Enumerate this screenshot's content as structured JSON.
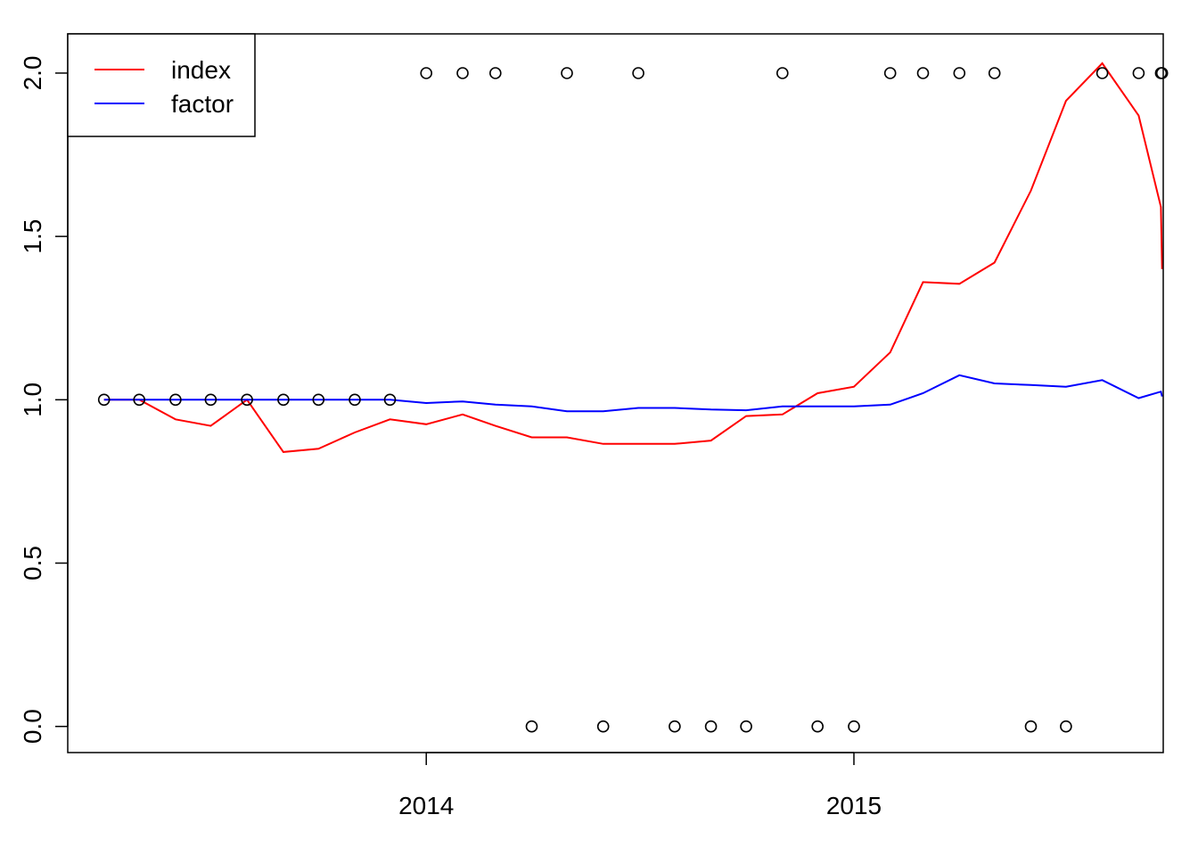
{
  "chart_data": {
    "type": "line",
    "x_axis": {
      "kind": "date",
      "range": [
        "2013-03-01",
        "2015-09-22"
      ],
      "ticks": [
        {
          "value": "2014-01-01",
          "label": "2014"
        },
        {
          "value": "2015-01-01",
          "label": "2015"
        }
      ]
    },
    "y_axis": {
      "range": [
        -0.08,
        2.12
      ],
      "ticks": [
        {
          "value": 0.0,
          "label": "0.0"
        },
        {
          "value": 0.5,
          "label": "0.5"
        },
        {
          "value": 1.0,
          "label": "1.0"
        },
        {
          "value": 1.5,
          "label": "1.5"
        },
        {
          "value": 2.0,
          "label": "2.0"
        }
      ]
    },
    "grid": false,
    "legend": {
      "position": "top-left",
      "entries": [
        {
          "label": "index",
          "color": "#ff0000"
        },
        {
          "label": "factor",
          "color": "#0000ff"
        }
      ]
    },
    "series": [
      {
        "name": "index",
        "type": "line",
        "color": "#ff0000",
        "points": [
          [
            "2013-04-01",
            1.0
          ],
          [
            "2013-05-01",
            1.0
          ],
          [
            "2013-06-01",
            0.94
          ],
          [
            "2013-07-01",
            0.92
          ],
          [
            "2013-08-01",
            1.0
          ],
          [
            "2013-09-01",
            0.84
          ],
          [
            "2013-10-01",
            0.85
          ],
          [
            "2013-11-01",
            0.9
          ],
          [
            "2013-12-01",
            0.94
          ],
          [
            "2014-01-01",
            0.925
          ],
          [
            "2014-02-01",
            0.955
          ],
          [
            "2014-03-01",
            0.92
          ],
          [
            "2014-04-01",
            0.885
          ],
          [
            "2014-05-01",
            0.885
          ],
          [
            "2014-06-01",
            0.865
          ],
          [
            "2014-07-01",
            0.865
          ],
          [
            "2014-08-01",
            0.865
          ],
          [
            "2014-09-01",
            0.875
          ],
          [
            "2014-10-01",
            0.95
          ],
          [
            "2014-11-01",
            0.955
          ],
          [
            "2014-12-01",
            1.02
          ],
          [
            "2015-01-01",
            1.04
          ],
          [
            "2015-02-01",
            1.145
          ],
          [
            "2015-03-01",
            1.36
          ],
          [
            "2015-04-01",
            1.355
          ],
          [
            "2015-05-01",
            1.42
          ],
          [
            "2015-06-01",
            1.64
          ],
          [
            "2015-07-01",
            1.915
          ],
          [
            "2015-08-01",
            2.03
          ],
          [
            "2015-09-01",
            1.87
          ],
          [
            "2015-09-20",
            1.59
          ],
          [
            "2015-09-21",
            1.4
          ]
        ]
      },
      {
        "name": "factor",
        "type": "line",
        "color": "#0000ff",
        "points": [
          [
            "2013-04-01",
            1.0
          ],
          [
            "2013-05-01",
            1.0
          ],
          [
            "2013-06-01",
            1.0
          ],
          [
            "2013-07-01",
            1.0
          ],
          [
            "2013-08-01",
            1.0
          ],
          [
            "2013-09-01",
            1.0
          ],
          [
            "2013-10-01",
            1.0
          ],
          [
            "2013-11-01",
            1.0
          ],
          [
            "2013-12-01",
            1.0
          ],
          [
            "2014-01-01",
            0.99
          ],
          [
            "2014-02-01",
            0.995
          ],
          [
            "2014-03-01",
            0.985
          ],
          [
            "2014-04-01",
            0.98
          ],
          [
            "2014-05-01",
            0.965
          ],
          [
            "2014-06-01",
            0.965
          ],
          [
            "2014-07-01",
            0.975
          ],
          [
            "2014-08-01",
            0.975
          ],
          [
            "2014-09-01",
            0.97
          ],
          [
            "2014-10-01",
            0.968
          ],
          [
            "2014-11-01",
            0.98
          ],
          [
            "2014-12-01",
            0.98
          ],
          [
            "2015-01-01",
            0.98
          ],
          [
            "2015-02-01",
            0.985
          ],
          [
            "2015-03-01",
            1.02
          ],
          [
            "2015-04-01",
            1.075
          ],
          [
            "2015-05-01",
            1.05
          ],
          [
            "2015-06-01",
            1.045
          ],
          [
            "2015-07-01",
            1.04
          ],
          [
            "2015-08-01",
            1.06
          ],
          [
            "2015-09-01",
            1.005
          ],
          [
            "2015-09-20",
            1.025
          ],
          [
            "2015-09-21",
            1.01
          ]
        ]
      },
      {
        "type": "scatter",
        "marker": "open-circle",
        "color": "#000000",
        "points": [
          [
            "2013-04-01",
            1
          ],
          [
            "2013-05-01",
            1
          ],
          [
            "2013-06-01",
            1
          ],
          [
            "2013-07-01",
            1
          ],
          [
            "2013-08-01",
            1
          ],
          [
            "2013-09-01",
            1
          ],
          [
            "2013-10-01",
            1
          ],
          [
            "2013-11-01",
            1
          ],
          [
            "2013-12-01",
            1
          ],
          [
            "2014-01-01",
            2
          ],
          [
            "2014-02-01",
            2
          ],
          [
            "2014-03-01",
            2
          ],
          [
            "2014-04-01",
            0
          ],
          [
            "2014-05-01",
            2
          ],
          [
            "2014-06-01",
            0
          ],
          [
            "2014-07-01",
            2
          ],
          [
            "2014-08-01",
            0
          ],
          [
            "2014-09-01",
            0
          ],
          [
            "2014-10-01",
            0
          ],
          [
            "2014-11-01",
            2
          ],
          [
            "2014-12-01",
            0
          ],
          [
            "2015-01-01",
            0
          ],
          [
            "2015-02-01",
            2
          ],
          [
            "2015-03-01",
            2
          ],
          [
            "2015-04-01",
            2
          ],
          [
            "2015-05-01",
            2
          ],
          [
            "2015-06-01",
            0
          ],
          [
            "2015-07-01",
            0
          ],
          [
            "2015-08-01",
            2
          ],
          [
            "2015-09-01",
            2
          ],
          [
            "2015-09-20",
            2
          ],
          [
            "2015-09-21",
            2
          ]
        ]
      }
    ]
  }
}
